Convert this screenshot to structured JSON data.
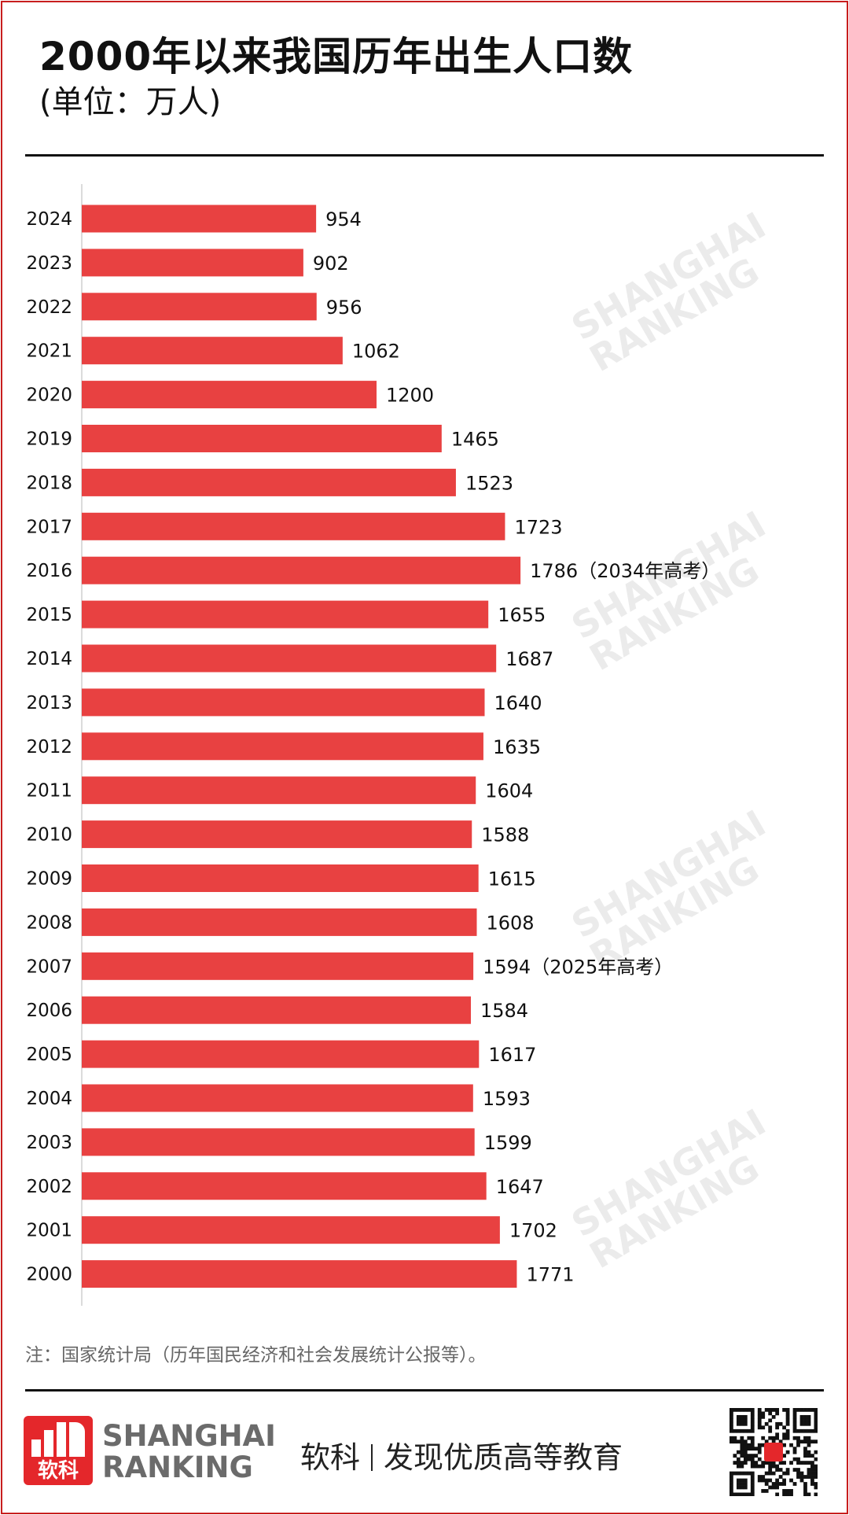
{
  "header": {
    "title": "2000年以来我国历年出生人口数",
    "subtitle": "(单位：万人)"
  },
  "chart_data": {
    "type": "bar",
    "orientation": "horizontal",
    "title": "2000年以来我国历年出生人口数",
    "subtitle": "(单位：万人)",
    "xlabel": "",
    "ylabel": "",
    "categories": [
      "2024",
      "2023",
      "2022",
      "2021",
      "2020",
      "2019",
      "2018",
      "2017",
      "2016",
      "2015",
      "2014",
      "2013",
      "2012",
      "2011",
      "2010",
      "2009",
      "2008",
      "2007",
      "2006",
      "2005",
      "2004",
      "2003",
      "2002",
      "2001",
      "2000"
    ],
    "values": [
      954,
      902,
      956,
      1062,
      1200,
      1465,
      1523,
      1723,
      1786,
      1655,
      1687,
      1640,
      1635,
      1604,
      1588,
      1615,
      1608,
      1594,
      1584,
      1617,
      1593,
      1599,
      1647,
      1702,
      1771
    ],
    "annotations": [
      {
        "category": "2016",
        "text": "（2034年高考）"
      },
      {
        "category": "2007",
        "text": "（2025年高考）"
      }
    ],
    "bar_color": "#e84141",
    "grid": false,
    "legend": "none"
  },
  "footer": {
    "note": "注：国家统计局（历年国民经济和社会发展统计公报等）。",
    "logo_cn": "软科",
    "logo_en_line1": "SHANGHAI",
    "logo_en_line2": "RANKING",
    "slogan_left": "软科",
    "slogan_right": "发现优质高等教育"
  },
  "watermark": {
    "line1": "SHANGHAI",
    "line2": "RANKING"
  },
  "colors": {
    "accent": "#e84141",
    "brand": "#e4272b",
    "frame": "#c81e1e"
  }
}
